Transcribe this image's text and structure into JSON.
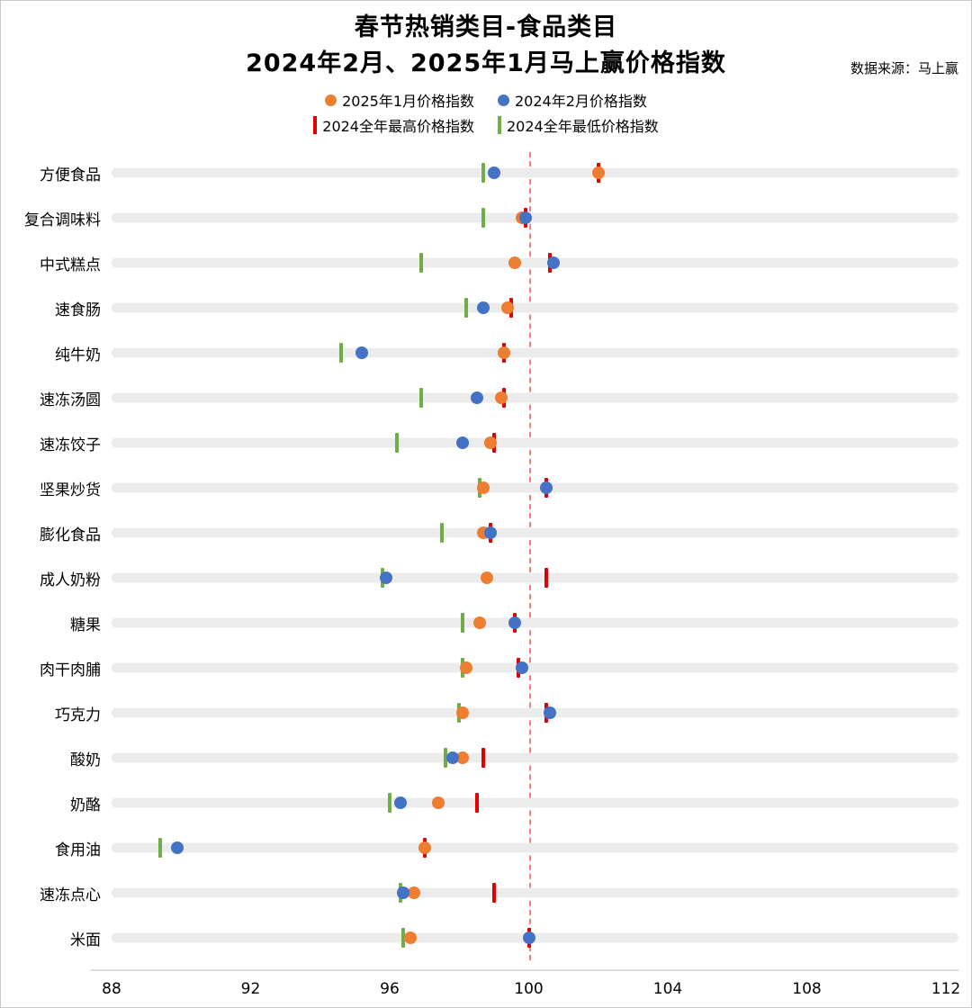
{
  "title": {
    "line1": "春节热销类目-食品类目",
    "line2": "2024年2月、2025年1月马上赢价格指数"
  },
  "source": "数据来源：马上赢",
  "colors": {
    "orange": "#ED7D31",
    "blue": "#4472C4",
    "red": "#E00000",
    "green": "#70AD47",
    "band": "#ececec",
    "reference_line": "#ff7a7a"
  },
  "legend": [
    {
      "label": "2025年1月价格指数",
      "marker": "dot",
      "color": "#ED7D31"
    },
    {
      "label": "2024年2月价格指数",
      "marker": "dot",
      "color": "#4472C4"
    },
    {
      "label": "2024全年最高价格指数",
      "marker": "bar",
      "color": "#E00000"
    },
    {
      "label": "2024全年最低价格指数",
      "marker": "bar",
      "color": "#70AD47"
    }
  ],
  "chart_data": {
    "type": "scatter",
    "title": "春节热销类目-食品类目 2024年2月、2025年1月马上赢价格指数",
    "x_axis": {
      "min": 88,
      "max": 112,
      "ticks": [
        88,
        92,
        96,
        100,
        104,
        108,
        112
      ]
    },
    "reference_line": 100,
    "grid": false,
    "legend_position": "top",
    "categories": [
      "方便食品",
      "复合调味料",
      "中式糕点",
      "速食肠",
      "纯牛奶",
      "速冻汤圆",
      "速冻饺子",
      "坚果炒货",
      "膨化食品",
      "成人奶粉",
      "糖果",
      "肉干肉脯",
      "巧克力",
      "酸奶",
      "奶酪",
      "食用油",
      "速冻点心",
      "米面"
    ],
    "series": [
      {
        "name": "2025年1月价格指数",
        "marker": "dot",
        "marker_name": "marker-2025-jan-dot",
        "color": "#ED7D31",
        "values": [
          102.0,
          99.8,
          99.6,
          99.4,
          99.3,
          99.2,
          98.9,
          98.7,
          98.7,
          98.8,
          98.6,
          98.2,
          98.1,
          98.1,
          97.4,
          97.0,
          96.7,
          96.6
        ]
      },
      {
        "name": "2024年2月价格指数",
        "marker": "dot",
        "marker_name": "marker-2024-feb-dot",
        "color": "#4472C4",
        "values": [
          99.0,
          99.9,
          100.7,
          98.7,
          95.2,
          98.5,
          98.1,
          100.5,
          98.9,
          95.9,
          99.6,
          99.8,
          100.6,
          97.8,
          96.3,
          89.9,
          96.4,
          100.0
        ]
      },
      {
        "name": "2024全年最高价格指数",
        "marker": "tick",
        "marker_name": "marker-2024-max-tick",
        "color": "#E00000",
        "values": [
          102.0,
          99.9,
          100.6,
          99.5,
          99.3,
          99.3,
          99.0,
          100.5,
          98.9,
          100.5,
          99.6,
          99.7,
          100.5,
          98.7,
          98.5,
          97.0,
          99.0,
          100.0
        ]
      },
      {
        "name": "2024全年最低价格指数",
        "marker": "tick",
        "marker_name": "marker-2024-min-tick",
        "color": "#70AD47",
        "values": [
          98.7,
          98.7,
          96.9,
          98.2,
          94.6,
          96.9,
          96.2,
          98.6,
          97.5,
          95.8,
          98.1,
          98.1,
          98.0,
          97.6,
          96.0,
          89.4,
          96.3,
          96.4
        ]
      }
    ]
  }
}
